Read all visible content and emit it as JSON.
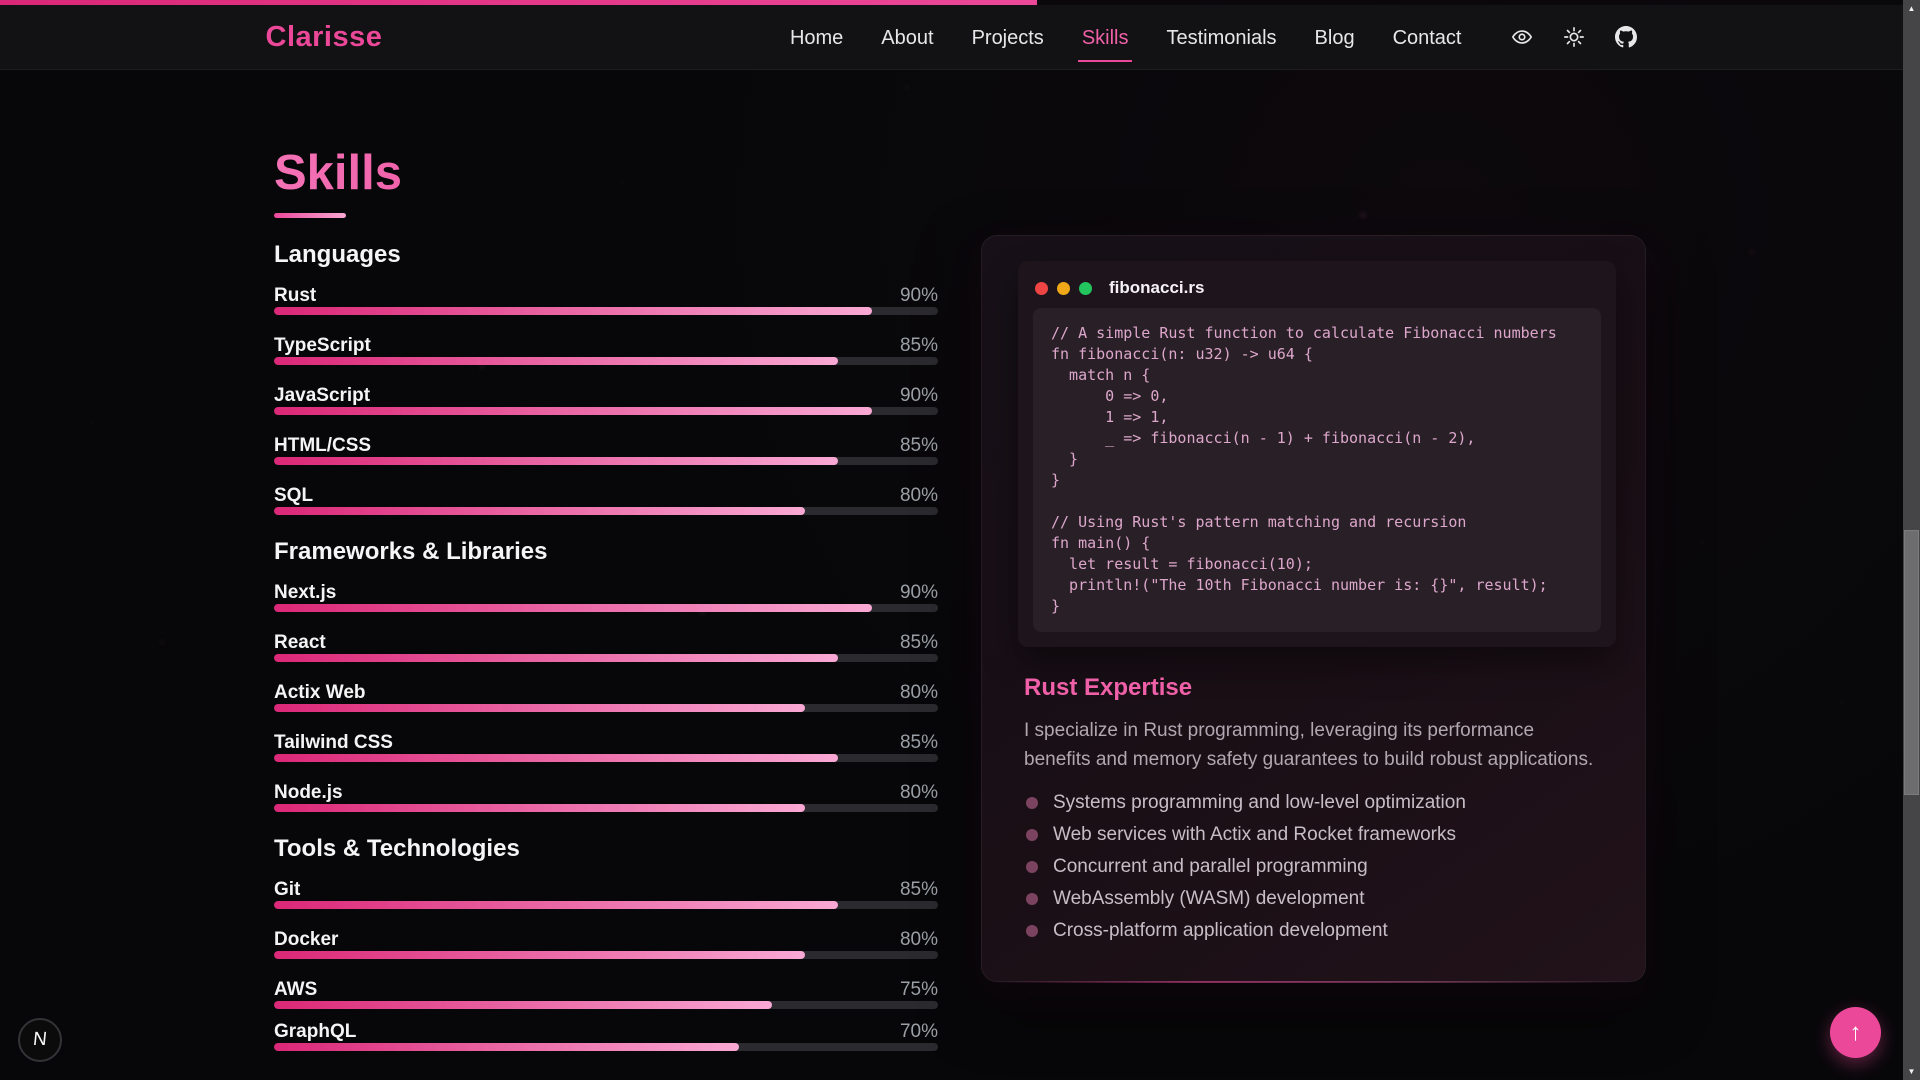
{
  "colors": {
    "accent": "#ec4899",
    "accent_light": "#f9a8d4",
    "background": "#070709",
    "navbar_bg": "#121214",
    "bar_track": "#2b2b2f",
    "code_text": "#dda7cb"
  },
  "scroll_progress": {
    "percent": 54
  },
  "nav": {
    "logo": "Clarisse",
    "links": [
      "Home",
      "About",
      "Projects",
      "Skills",
      "Testimonials",
      "Blog",
      "Contact"
    ],
    "active_link": "Skills",
    "icons": [
      "eye-icon",
      "sun-icon",
      "github-icon"
    ]
  },
  "page": {
    "title": "Skills"
  },
  "skills": {
    "sections": [
      {
        "title": "Languages",
        "items": [
          {
            "name": "Rust",
            "percent": 90
          },
          {
            "name": "TypeScript",
            "percent": 85
          },
          {
            "name": "JavaScript",
            "percent": 90
          },
          {
            "name": "HTML/CSS",
            "percent": 85
          },
          {
            "name": "SQL",
            "percent": 80
          }
        ]
      },
      {
        "title": "Frameworks & Libraries",
        "items": [
          {
            "name": "Next.js",
            "percent": 90
          },
          {
            "name": "React",
            "percent": 85
          },
          {
            "name": "Actix Web",
            "percent": 80
          },
          {
            "name": "Tailwind CSS",
            "percent": 85
          },
          {
            "name": "Node.js",
            "percent": 80
          }
        ]
      },
      {
        "title": "Tools & Technologies",
        "items": [
          {
            "name": "Git",
            "percent": 85
          },
          {
            "name": "Docker",
            "percent": 80
          },
          {
            "name": "AWS",
            "percent": 75
          },
          {
            "name": "GraphQL",
            "percent": 70,
            "clipped": true
          }
        ]
      }
    ]
  },
  "code_card": {
    "filename": "fibonacci.rs",
    "code_lines": [
      "// A simple Rust function to calculate Fibonacci numbers",
      "fn fibonacci(n: u32) -> u64 {",
      "  match n {",
      "      0 => 0,",
      "      1 => 1,",
      "      _ => fibonacci(n - 1) + fibonacci(n - 2),",
      "  }",
      "}",
      "",
      "// Using Rust's pattern matching and recursion",
      "fn main() {",
      "  let result = fibonacci(10);",
      "  println!(\"The 10th Fibonacci number is: {}\", result);",
      "}"
    ],
    "expertise": {
      "title": "Rust Expertise",
      "description": "I specialize in Rust programming, leveraging its performance benefits and memory safety guarantees to build robust applications.",
      "bullets": [
        "Systems programming and low-level optimization",
        "Web services with Actix and Rocket frameworks",
        "Concurrent and parallel programming",
        "WebAssembly (WASM) development",
        "Cross-platform application development"
      ]
    }
  },
  "floating": {
    "next_badge_label": "N",
    "scroll_top_arrow": "↑"
  },
  "scrollbar": {
    "up_arrow": "▲",
    "down_arrow": "▼"
  }
}
